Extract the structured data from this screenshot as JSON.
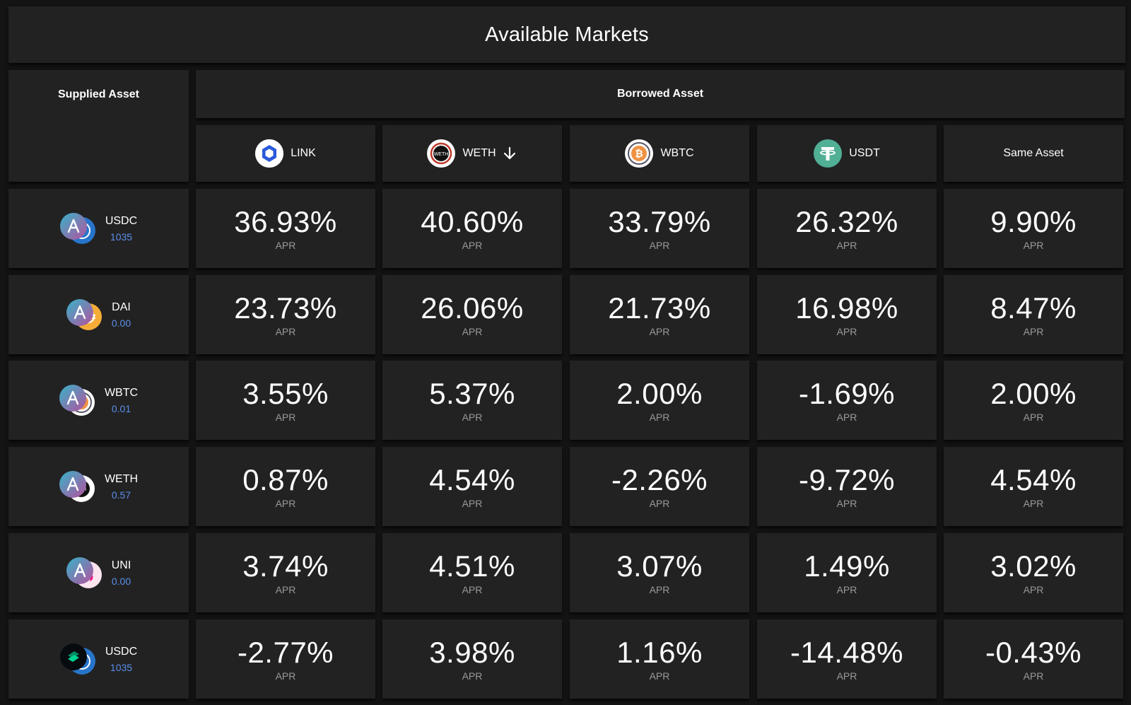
{
  "title": "Available Markets",
  "supplied_header": "Supplied Asset",
  "borrowed_header": "Borrowed Asset",
  "columns": [
    {
      "label": "LINK",
      "icon": "link-icon"
    },
    {
      "label": "WETH",
      "icon": "weth-icon",
      "sort": "arrow-down-icon"
    },
    {
      "label": "WBTC",
      "icon": "wbtc-icon"
    },
    {
      "label": "USDT",
      "icon": "usdt-icon"
    },
    {
      "label": "Same Asset"
    }
  ],
  "apr_label": "APR",
  "rows": [
    {
      "symbol": "USDC",
      "balance": "1035",
      "protocol": "aave",
      "values": [
        "36.93%",
        "40.60%",
        "33.79%",
        "26.32%",
        "9.90%"
      ]
    },
    {
      "symbol": "DAI",
      "balance": "0.00",
      "protocol": "aave",
      "values": [
        "23.73%",
        "26.06%",
        "21.73%",
        "16.98%",
        "8.47%"
      ]
    },
    {
      "symbol": "WBTC",
      "balance": "0.01",
      "protocol": "aave",
      "values": [
        "3.55%",
        "5.37%",
        "2.00%",
        "-1.69%",
        "2.00%"
      ]
    },
    {
      "symbol": "WETH",
      "balance": "0.57",
      "protocol": "aave",
      "values": [
        "0.87%",
        "4.54%",
        "-2.26%",
        "-9.72%",
        "4.54%"
      ]
    },
    {
      "symbol": "UNI",
      "balance": "0.00",
      "protocol": "aave",
      "values": [
        "3.74%",
        "4.51%",
        "3.07%",
        "1.49%",
        "3.02%"
      ]
    },
    {
      "symbol": "USDC",
      "balance": "1035",
      "protocol": "compound",
      "values": [
        "-2.77%",
        "3.98%",
        "1.16%",
        "-14.48%",
        "-0.43%"
      ]
    }
  ],
  "colors": {
    "background": "#141414",
    "panel": "#222223",
    "balance": "#5b8fe8",
    "label_muted": "#9a9a9a"
  }
}
